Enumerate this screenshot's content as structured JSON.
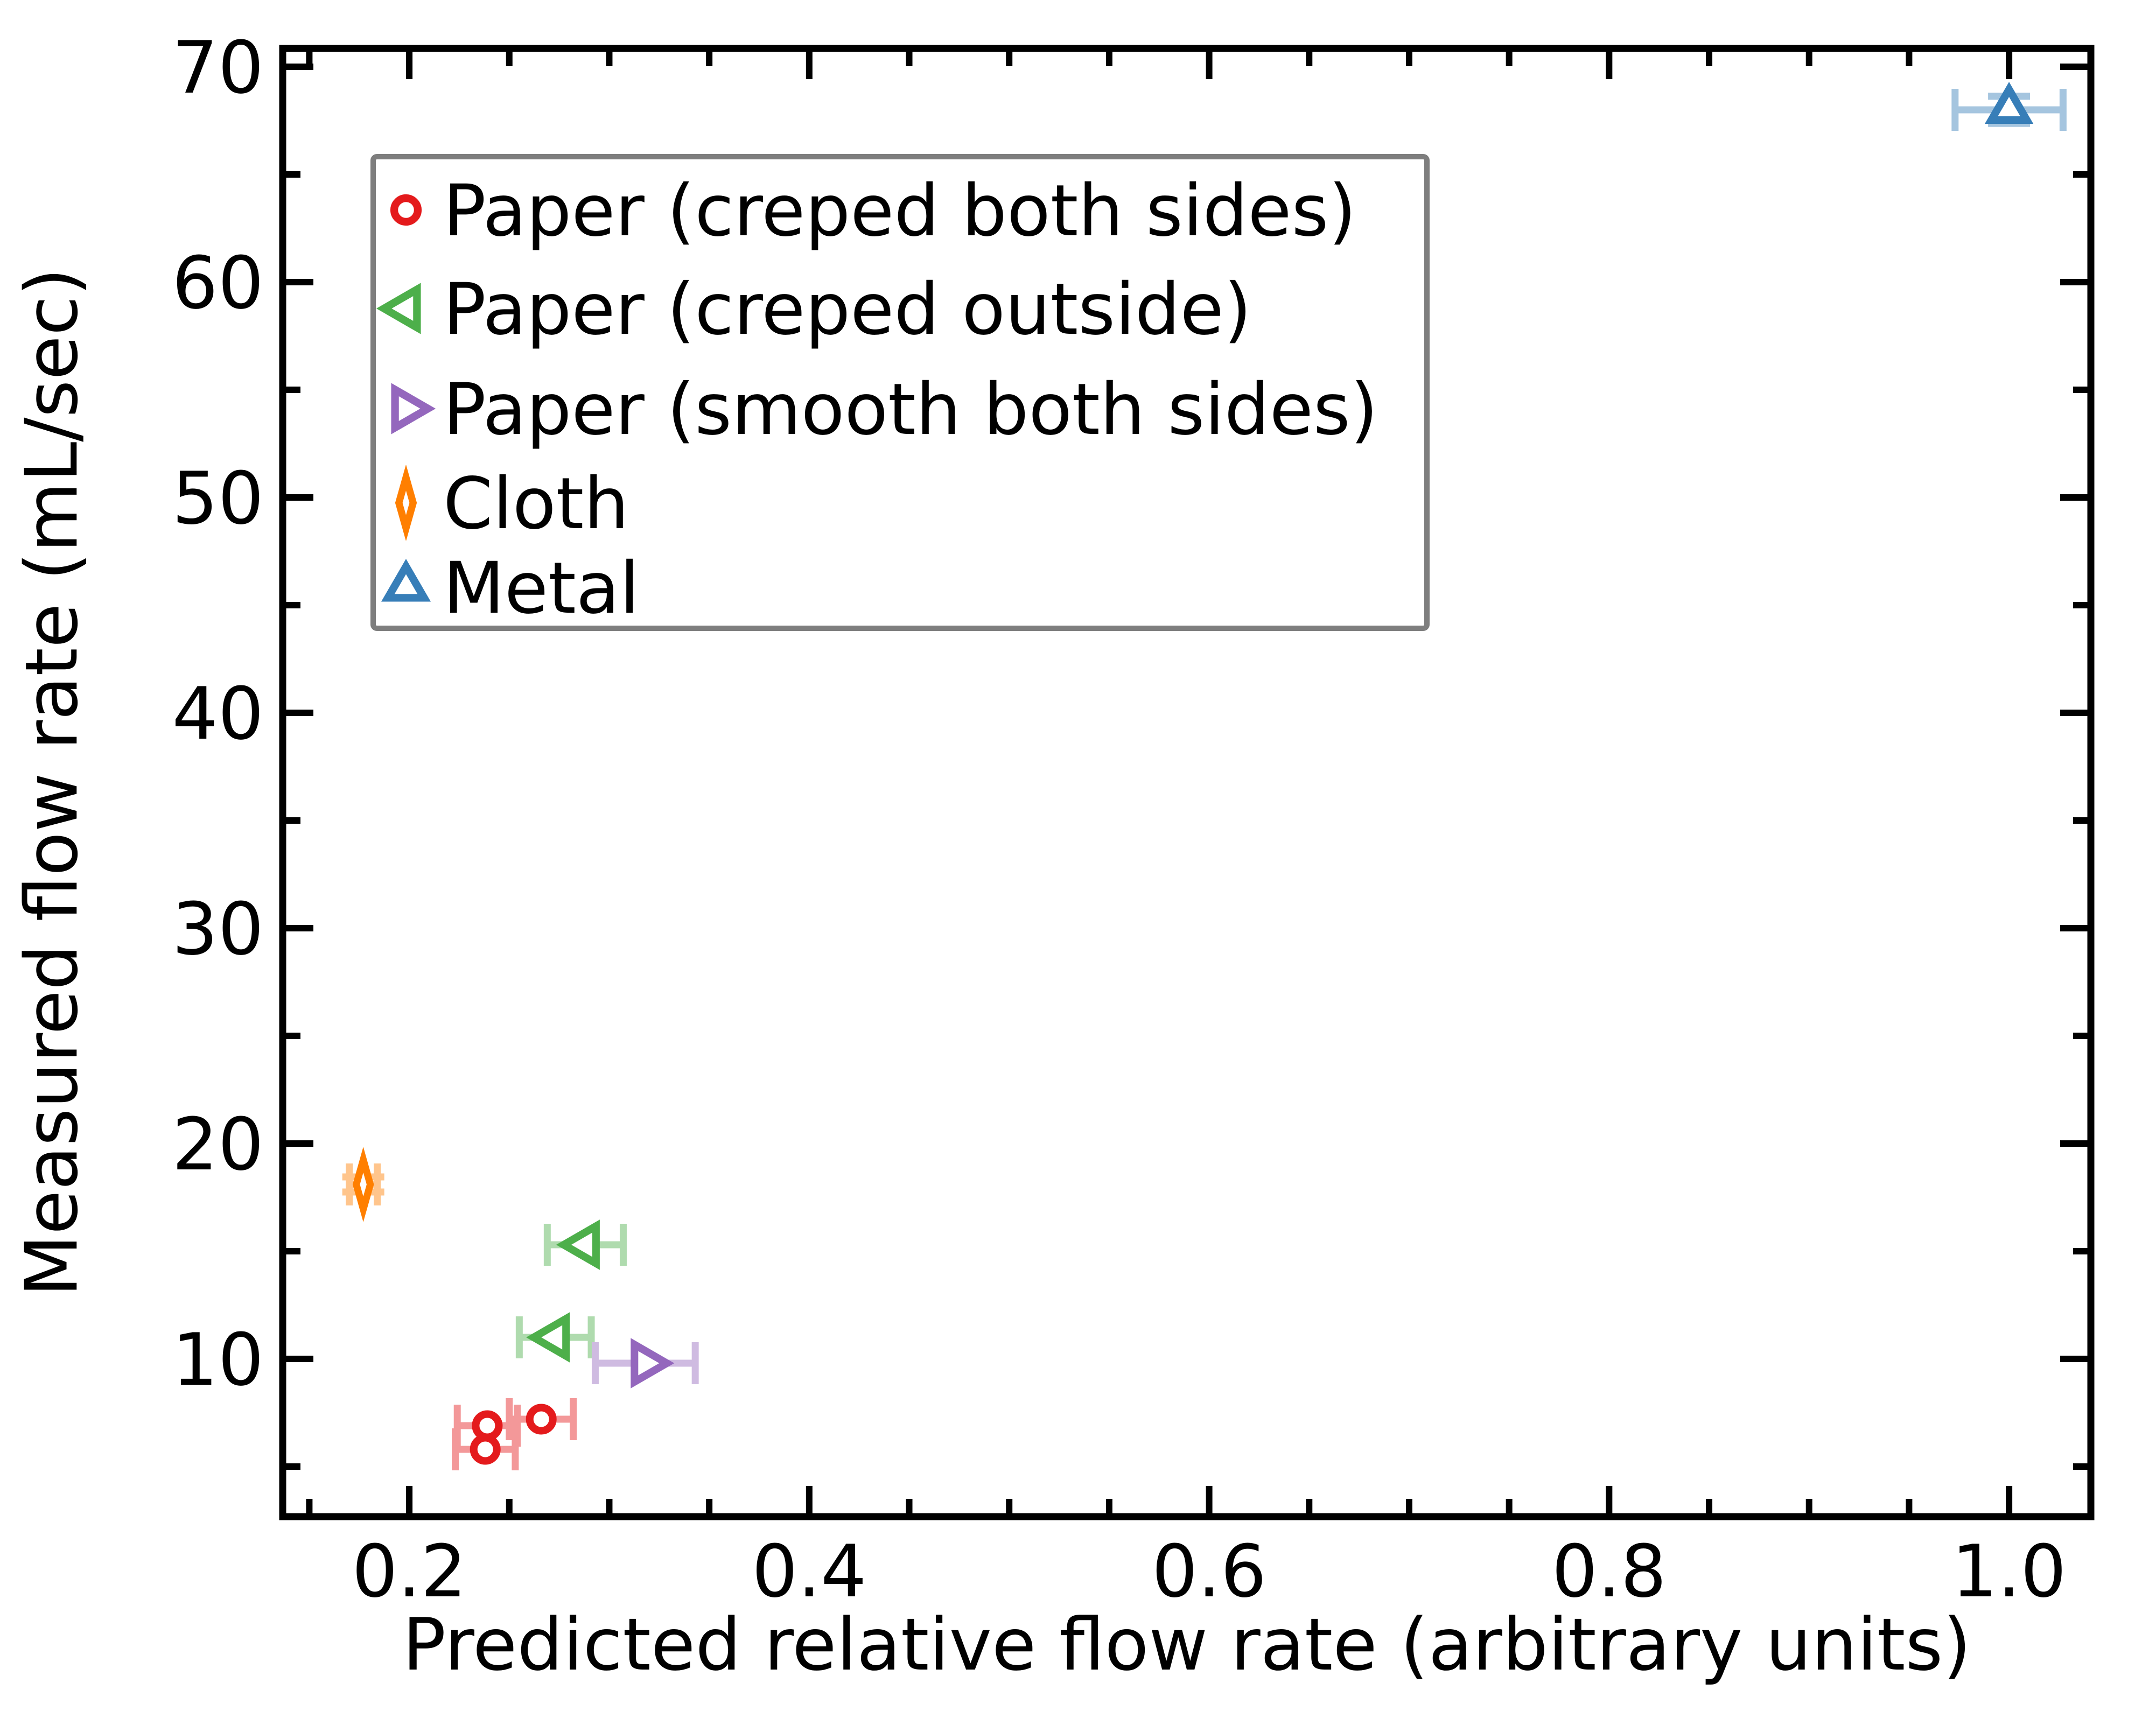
{
  "figure": {
    "background": "#ffffff"
  },
  "axes": {
    "xlabel": "Predicted relative flow rate (arbitrary units)",
    "ylabel": "Measured flow rate (mL/sec)",
    "xlim": [
      0.1367,
      1.0409
    ],
    "ylim": [
      2.675,
      70.85
    ],
    "x_ticks": [
      {
        "value": 0.2,
        "label": "0.2"
      },
      {
        "value": 0.4,
        "label": "0.4"
      },
      {
        "value": 0.6,
        "label": "0.6"
      },
      {
        "value": 0.8,
        "label": "0.8"
      },
      {
        "value": 1.0,
        "label": "1.0"
      }
    ],
    "y_ticks": [
      {
        "value": 10,
        "label": "10"
      },
      {
        "value": 20,
        "label": "20"
      },
      {
        "value": 30,
        "label": "30"
      },
      {
        "value": 40,
        "label": "40"
      },
      {
        "value": 50,
        "label": "50"
      },
      {
        "value": 60,
        "label": "60"
      },
      {
        "value": 70,
        "label": "70"
      }
    ],
    "x_minor_step": 0.05,
    "y_minor_step": 5,
    "tick_direction": "in",
    "ticks_on_all_sides": true,
    "grid": false
  },
  "chart_data": {
    "type": "scatter",
    "title": "",
    "xlabel": "Predicted relative flow rate (arbitrary units)",
    "ylabel": "Measured flow rate (mL/sec)",
    "legend_position": "upper left",
    "series": [
      {
        "name": "Paper (creped both sides)",
        "slug": "paper-creped-both-sides",
        "marker": "circle",
        "color": "#e41a1c",
        "errorbar_color": "#f39899",
        "points": [
          {
            "x": 0.239,
            "y": 6.9,
            "xerr": 0.015
          },
          {
            "x": 0.238,
            "y": 5.8,
            "xerr": 0.015
          },
          {
            "x": 0.266,
            "y": 7.2,
            "xerr": 0.016
          }
        ]
      },
      {
        "name": "Paper (creped outside)",
        "slug": "paper-creped-outside",
        "marker": "triangle-left",
        "color": "#4daf4a",
        "errorbar_color": "#afdbae",
        "points": [
          {
            "x": 0.288,
            "y": 15.3,
            "xerr": 0.019
          },
          {
            "x": 0.273,
            "y": 11.0,
            "xerr": 0.018
          }
        ]
      },
      {
        "name": "Paper (smooth both sides)",
        "slug": "paper-smooth-both-sides",
        "marker": "triangle-right",
        "color": "#9467bd",
        "errorbar_color": "#cfbbe1",
        "points": [
          {
            "x": 0.318,
            "y": 9.8,
            "xerr": 0.025
          }
        ]
      },
      {
        "name": "Cloth",
        "slug": "cloth",
        "marker": "thin-diamond",
        "color": "#ff7f00",
        "errorbar_color": "#ffc58c",
        "points": [
          {
            "x": 0.177,
            "y": 18.1,
            "xerr": 0.007,
            "yerr": 0.35
          }
        ]
      },
      {
        "name": "Metal",
        "slug": "metal",
        "marker": "triangle-up",
        "color": "#377eb8",
        "errorbar_color": "#a5c5df",
        "points": [
          {
            "x": 1.0,
            "y": 68.0,
            "xerr": 0.027,
            "yerr": 0.63
          }
        ]
      }
    ]
  }
}
